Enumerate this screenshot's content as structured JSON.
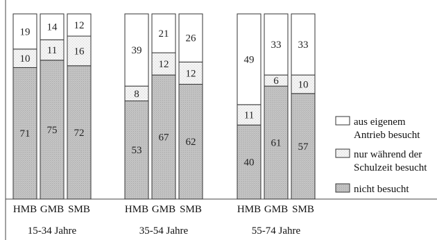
{
  "chart_data": {
    "type": "bar",
    "stacked": true,
    "percent": true,
    "ylim": [
      0,
      100
    ],
    "grid": false,
    "legend_position": "right",
    "groups": [
      {
        "label": "15-34 Jahre",
        "bars": [
          {
            "category": "HMB",
            "nicht_besucht": 71,
            "schulzeit": 10,
            "eigen": 19
          },
          {
            "category": "GMB",
            "nicht_besucht": 75,
            "schulzeit": 11,
            "eigen": 14
          },
          {
            "category": "SMB",
            "nicht_besucht": 72,
            "schulzeit": 16,
            "eigen": 12
          }
        ]
      },
      {
        "label": "35-54 Jahre",
        "bars": [
          {
            "category": "HMB",
            "nicht_besucht": 53,
            "schulzeit": 8,
            "eigen": 39
          },
          {
            "category": "GMB",
            "nicht_besucht": 67,
            "schulzeit": 12,
            "eigen": 21
          },
          {
            "category": "SMB",
            "nicht_besucht": 62,
            "schulzeit": 12,
            "eigen": 26
          }
        ]
      },
      {
        "label": "55-74 Jahre",
        "bars": [
          {
            "category": "HMB",
            "nicht_besucht": 40,
            "schulzeit": 11,
            "eigen": 49
          },
          {
            "category": "GMB",
            "nicht_besucht": 61,
            "schulzeit": 6,
            "eigen": 33
          },
          {
            "category": "SMB",
            "nicht_besucht": 57,
            "schulzeit": 10,
            "eigen": 33
          }
        ]
      }
    ],
    "series": [
      {
        "key": "eigen",
        "name": "aus eigenem Antrieb besucht",
        "legend_lines": [
          "aus eigenem",
          "Antrieb besucht"
        ],
        "color": "#ffffff"
      },
      {
        "key": "schulzeit",
        "name": "nur während der Schulzeit besucht",
        "legend_lines": [
          "nur während der",
          "Schulzeit besucht"
        ],
        "color": "#f1f1f1"
      },
      {
        "key": "nicht_besucht",
        "name": "nicht besucht",
        "legend_lines": [
          "nicht besucht"
        ],
        "color": "#c2c2c2"
      }
    ]
  }
}
